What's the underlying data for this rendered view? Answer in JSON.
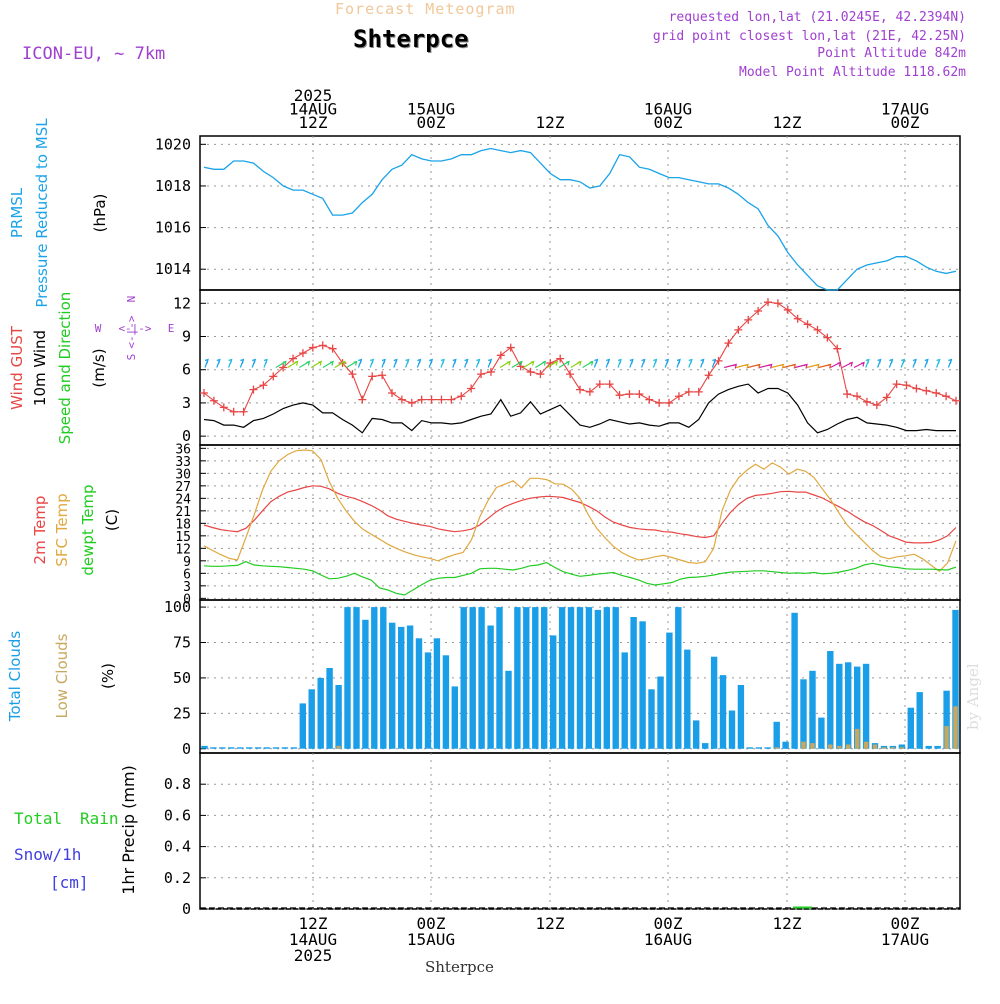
{
  "header": {
    "product": "Forecast Meteogram",
    "location": "Shterpce",
    "model": "ICON-EU, ~ 7km",
    "requested": "requested lon,lat (21.0245E, 42.2394N)",
    "gridpoint": "grid point closest lon,lat (21E, 42.25N)",
    "point_alt": "Point Altitude 842m",
    "model_alt": "Model Point Altitude 1118.62m",
    "footer_location": "Shterpce",
    "credit": "by Angel"
  },
  "time_axis": {
    "top_labels": [
      {
        "lines": [
          "2025",
          "14AUG",
          "12Z"
        ]
      },
      {
        "lines": [
          "15AUG",
          "00Z"
        ]
      },
      {
        "lines": [
          "12Z"
        ]
      },
      {
        "lines": [
          "16AUG",
          "00Z"
        ]
      },
      {
        "lines": [
          "12Z"
        ]
      },
      {
        "lines": [
          "17AUG",
          "00Z"
        ]
      }
    ],
    "bottom_labels": [
      {
        "lines": [
          "12Z",
          "14AUG",
          "2025"
        ]
      },
      {
        "lines": [
          "00Z",
          "15AUG"
        ]
      },
      {
        "lines": [
          "12Z"
        ]
      },
      {
        "lines": [
          "00Z",
          "16AUG"
        ]
      },
      {
        "lines": [
          "12Z"
        ]
      },
      {
        "lines": [
          "00Z",
          "17AUG"
        ]
      }
    ]
  },
  "panels": {
    "pressure": {
      "labels": [
        "PRMSL",
        "Pressure Reduced to MSL"
      ],
      "unit": "(hPa)",
      "yticks": [
        "1014",
        "1016",
        "1018",
        "1020"
      ]
    },
    "wind": {
      "labels": [
        "Wind GUST",
        "10m Wind",
        "Speed and Direction"
      ],
      "unit": "(m/s)",
      "yticks": [
        "0",
        "3",
        "6",
        "9",
        "12"
      ],
      "compass": {
        "n": "N",
        "s": "S",
        "w": "W",
        "e": "E",
        "rose": "<-|->"
      }
    },
    "temp": {
      "labels": [
        "2m Temp",
        "SFC Temp",
        "dewpt Temp"
      ],
      "unit": "(C)",
      "yticks": [
        "0",
        "3",
        "6",
        "9",
        "12",
        "15",
        "18",
        "21",
        "24",
        "27",
        "30",
        "33",
        "36"
      ]
    },
    "clouds": {
      "labels": [
        "Total Clouds",
        "Low Clouds"
      ],
      "unit": "(%)",
      "yticks": [
        "0",
        "25",
        "50",
        "75",
        "100"
      ]
    },
    "precip": {
      "labels": [
        "Total",
        "Rain",
        "Snow/1h",
        "[cm]"
      ],
      "unit": "1hr Precip (mm)",
      "yticks": [
        "0",
        "0.2",
        "0.4",
        "0.6",
        "0.8"
      ]
    }
  },
  "colors": {
    "pressure": "#1aa3e8",
    "gust": "#e84545",
    "wind": "#000000",
    "t2m": "#e84545",
    "tsfc": "#e0a840",
    "dewpt": "#22cc22",
    "total_clouds": "#1a9ee8",
    "low_clouds": "#c8a860",
    "rain": "#22cc22",
    "snow": "#4040e0",
    "magenta": "#a040d0"
  },
  "chart_data": [
    {
      "type": "line",
      "name_ref": "pressure",
      "x_unit": "hours since start (3-hourly steps)",
      "x": [
        0,
        1,
        2,
        3,
        4,
        5,
        6,
        7,
        8,
        9,
        10,
        11,
        12,
        13,
        14,
        15,
        16,
        17,
        18,
        19,
        20,
        21,
        22,
        23,
        24,
        25,
        26,
        27,
        28,
        29,
        30,
        31,
        32,
        33,
        34,
        35,
        36,
        37,
        38,
        39,
        40,
        41,
        42,
        43,
        44,
        45,
        46,
        47,
        48,
        49,
        50,
        51,
        52,
        53,
        54,
        55,
        56,
        57,
        58,
        59,
        60,
        61,
        62,
        63,
        64,
        65,
        66,
        67,
        68,
        69,
        70,
        71,
        72,
        73,
        74,
        75,
        76
      ],
      "series": [
        {
          "values": [
            1018.9,
            1018.8,
            1018.8,
            1019.2,
            1019.2,
            1019.1,
            1018.7,
            1018.4,
            1018.0,
            1017.8,
            1017.8,
            1017.6,
            1017.4,
            1016.6,
            1016.6,
            1016.7,
            1017.2,
            1017.6,
            1018.3,
            1018.8,
            1019.0,
            1019.5,
            1019.3,
            1019.2,
            1019.2,
            1019.3,
            1019.5,
            1019.5,
            1019.7,
            1019.8,
            1019.7,
            1019.6,
            1019.7,
            1019.6,
            1019.1,
            1018.6,
            1018.3,
            1018.3,
            1018.2,
            1017.9,
            1018.0,
            1018.6,
            1019.5,
            1019.4,
            1018.9,
            1018.8,
            1018.6,
            1018.4,
            1018.4,
            1018.3,
            1018.2,
            1018.1,
            1018.1,
            1017.9,
            1017.6,
            1017.2,
            1016.9,
            1016.1,
            1015.6,
            1014.8,
            1014.2,
            1013.7,
            1013.2,
            1013.0,
            1013.0,
            1013.5,
            1014.0,
            1014.2,
            1014.3,
            1014.4,
            1014.6,
            1014.6,
            1014.4,
            1014.1,
            1013.9,
            1013.8,
            1013.9
          ]
        }
      ],
      "ylim": [
        1013,
        1020.4
      ]
    },
    {
      "type": "line",
      "name_ref": "wind",
      "series": [
        {
          "name": "Wind GUST",
          "values": [
            3.9,
            3.2,
            2.6,
            2.2,
            2.2,
            4.2,
            4.6,
            5.4,
            6.2,
            7.0,
            7.5,
            8.0,
            8.2,
            7.9,
            6.6,
            5.6,
            3.3,
            5.4,
            5.5,
            3.9,
            3.3,
            3.0,
            3.3,
            3.3,
            3.3,
            3.3,
            3.6,
            4.3,
            5.6,
            5.8,
            7.3,
            8.0,
            6.3,
            5.8,
            5.6,
            6.6,
            7.0,
            5.6,
            4.2,
            4.0,
            4.7,
            4.7,
            3.7,
            3.8,
            3.8,
            3.3,
            3.0,
            3.0,
            3.6,
            4.0,
            4.0,
            5.5,
            6.8,
            8.4,
            9.6,
            10.5,
            11.3,
            12.1,
            12.0,
            11.4,
            10.6,
            10.1,
            9.6,
            8.9,
            7.9,
            3.8,
            3.6,
            3.1,
            2.8,
            3.5,
            4.7,
            4.6,
            4.3,
            4.1,
            3.9,
            3.6,
            3.2
          ]
        },
        {
          "name": "10m Wind",
          "values": [
            1.5,
            1.4,
            1.0,
            1.0,
            0.8,
            1.4,
            1.6,
            2.0,
            2.5,
            2.8,
            3.0,
            2.8,
            2.1,
            2.1,
            1.5,
            1.0,
            0.3,
            1.6,
            1.5,
            1.2,
            1.2,
            0.5,
            1.4,
            1.2,
            1.2,
            1.1,
            1.2,
            1.5,
            1.8,
            2.0,
            3.3,
            1.8,
            2.1,
            3.1,
            2.0,
            2.4,
            2.8,
            1.9,
            1.0,
            0.8,
            1.1,
            1.5,
            1.3,
            1.1,
            1.2,
            1.0,
            0.9,
            1.2,
            1.2,
            0.8,
            1.5,
            3.0,
            3.8,
            4.2,
            4.5,
            4.7,
            3.9,
            4.3,
            4.3,
            3.9,
            2.8,
            1.2,
            0.3,
            0.6,
            1.1,
            1.5,
            1.7,
            1.2,
            1.1,
            1.0,
            0.8,
            0.5,
            0.5,
            0.6,
            0.5,
            0.5,
            0.5
          ]
        }
      ],
      "ylim": [
        -0.8,
        13.2
      ]
    },
    {
      "type": "line",
      "name_ref": "temp",
      "series": [
        {
          "name": "2m Temp",
          "values": [
            17.6,
            17.0,
            16.5,
            16.2,
            16.0,
            16.8,
            18.7,
            21.0,
            23.2,
            24.5,
            25.5,
            26.0,
            26.6,
            27.0,
            26.9,
            26.3,
            25.2,
            24.5,
            24.0,
            23.2,
            22.3,
            21.2,
            19.8,
            19.0,
            18.5,
            18.0,
            17.6,
            17.3,
            16.7,
            16.3,
            16.0,
            16.2,
            16.6,
            17.6,
            19.2,
            20.8,
            22.0,
            22.8,
            23.5,
            24.0,
            24.3,
            24.5,
            24.4,
            24.2,
            23.6,
            23.0,
            22.1,
            21.0,
            19.5,
            18.3,
            17.6,
            17.0,
            16.7,
            16.5,
            16.4,
            16.0,
            15.9,
            15.5,
            15.2,
            14.8,
            14.6,
            15.0,
            18.0,
            20.6,
            22.6,
            24.0,
            24.7,
            24.9,
            25.2,
            25.6,
            25.7,
            25.5,
            25.5,
            24.8,
            24.1,
            23.0,
            22.0,
            20.9,
            19.6,
            18.4,
            17.5,
            16.3,
            15.0,
            14.3,
            13.5,
            13.3,
            13.3,
            13.4,
            14.0,
            15.0,
            17.0
          ]
        },
        {
          "name": "SFC Temp",
          "values": [
            12.6,
            11.5,
            10.5,
            9.6,
            9.2,
            14.5,
            20.0,
            26.0,
            30.5,
            33.0,
            34.5,
            35.4,
            35.6,
            35.4,
            33.3,
            28.0,
            24.0,
            21.0,
            18.5,
            16.6,
            15.4,
            14.2,
            13.0,
            12.0,
            11.2,
            10.5,
            10.0,
            9.6,
            9.0,
            9.8,
            10.5,
            11.0,
            14.0,
            19.5,
            23.5,
            26.6,
            27.4,
            28.2,
            26.5,
            28.8,
            28.8,
            28.5,
            27.5,
            27.4,
            26.2,
            24.0,
            20.0,
            16.8,
            14.5,
            12.5,
            11.0,
            10.0,
            9.2,
            9.5,
            10.0,
            10.3,
            9.8,
            9.2,
            8.6,
            8.4,
            8.8,
            12.0,
            21.0,
            26.0,
            29.0,
            30.8,
            32.2,
            31.0,
            32.5,
            31.5,
            29.8,
            31.0,
            30.5,
            29.0,
            26.3,
            23.6,
            20.5,
            17.5,
            15.5,
            13.5,
            11.5,
            10.0,
            9.5,
            10.0,
            10.2,
            10.6,
            9.5,
            8.0,
            6.5,
            8.5,
            13.8
          ]
        },
        {
          "name": "dewpt Temp",
          "values": [
            7.8,
            7.7,
            7.7,
            7.8,
            7.9,
            8.8,
            8.0,
            7.8,
            7.7,
            7.6,
            7.4,
            7.2,
            7.0,
            6.6,
            5.6,
            4.7,
            4.8,
            5.3,
            6.0,
            5.1,
            4.4,
            2.5,
            2.0,
            1.2,
            0.8,
            2.0,
            3.2,
            4.3,
            4.8,
            5.0,
            5.0,
            5.5,
            6.0,
            7.1,
            7.2,
            7.2,
            7.0,
            6.8,
            7.2,
            7.8,
            8.0,
            8.6,
            7.4,
            6.4,
            5.8,
            5.3,
            5.5,
            5.8,
            6.0,
            6.2,
            5.5,
            5.0,
            4.4,
            3.6,
            3.2,
            3.5,
            3.8,
            4.6,
            5.0,
            5.1,
            5.3,
            5.6,
            6.0,
            6.3,
            6.4,
            6.5,
            6.6,
            6.6,
            6.4,
            6.2,
            6.0,
            6.1,
            6.0,
            6.2,
            5.9,
            6.0,
            6.3,
            6.7,
            7.2,
            8.0,
            8.4,
            8.0,
            7.6,
            7.4,
            7.1,
            7.0,
            7.0,
            7.0,
            6.9,
            6.8,
            7.5
          ]
        }
      ],
      "ylim": [
        -0.4,
        36.8
      ]
    },
    {
      "type": "bar",
      "name_ref": "clouds",
      "series": [
        {
          "name": "Total Clouds",
          "values": [
            2,
            1,
            1,
            1,
            1,
            1,
            1,
            1,
            1,
            1,
            1,
            32,
            42,
            50,
            57,
            45,
            100,
            100,
            91,
            100,
            100,
            89,
            86,
            87,
            78,
            68,
            78,
            66,
            44,
            100,
            100,
            100,
            87,
            100,
            55,
            100,
            100,
            100,
            100,
            80,
            100,
            100,
            100,
            100,
            98,
            100,
            100,
            68,
            93,
            90,
            42,
            51,
            82,
            100,
            70,
            20,
            4,
            65,
            52,
            27,
            45,
            1,
            1,
            1,
            19,
            5,
            96,
            49,
            55,
            22,
            69,
            60,
            61,
            58,
            60,
            4,
            2,
            2,
            3,
            29,
            40,
            2,
            2,
            41,
            98
          ]
        },
        {
          "name": "Low Clouds",
          "values": [
            0,
            0,
            0,
            0,
            0,
            0,
            0,
            0,
            0,
            0,
            0,
            0,
            0,
            0,
            0,
            2,
            0,
            0,
            0,
            0,
            0,
            0,
            0,
            0,
            0,
            0,
            0,
            0,
            0,
            0,
            0,
            0,
            0,
            0,
            0,
            0,
            0,
            0,
            0,
            0,
            0,
            0,
            0,
            0,
            0,
            0,
            0,
            0,
            0,
            0,
            0,
            0,
            0,
            0,
            0,
            0,
            0,
            0,
            0,
            0,
            0,
            0,
            0,
            0,
            1,
            0,
            0,
            5,
            4,
            0,
            3,
            2,
            3,
            14,
            5,
            3,
            1,
            1,
            1,
            0,
            0,
            0,
            0,
            16,
            30
          ]
        }
      ],
      "ylim": [
        -3,
        105
      ]
    },
    {
      "type": "bar",
      "name_ref": "precip",
      "series": [
        {
          "name": "Total Rain",
          "values": []
        }
      ],
      "ylim": [
        0,
        1.0
      ]
    }
  ]
}
